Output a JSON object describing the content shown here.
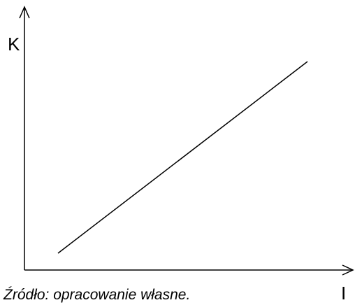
{
  "axes": {
    "y_label": "K",
    "x_label": "I"
  },
  "caption": "Źródło: opracowanie własne."
}
